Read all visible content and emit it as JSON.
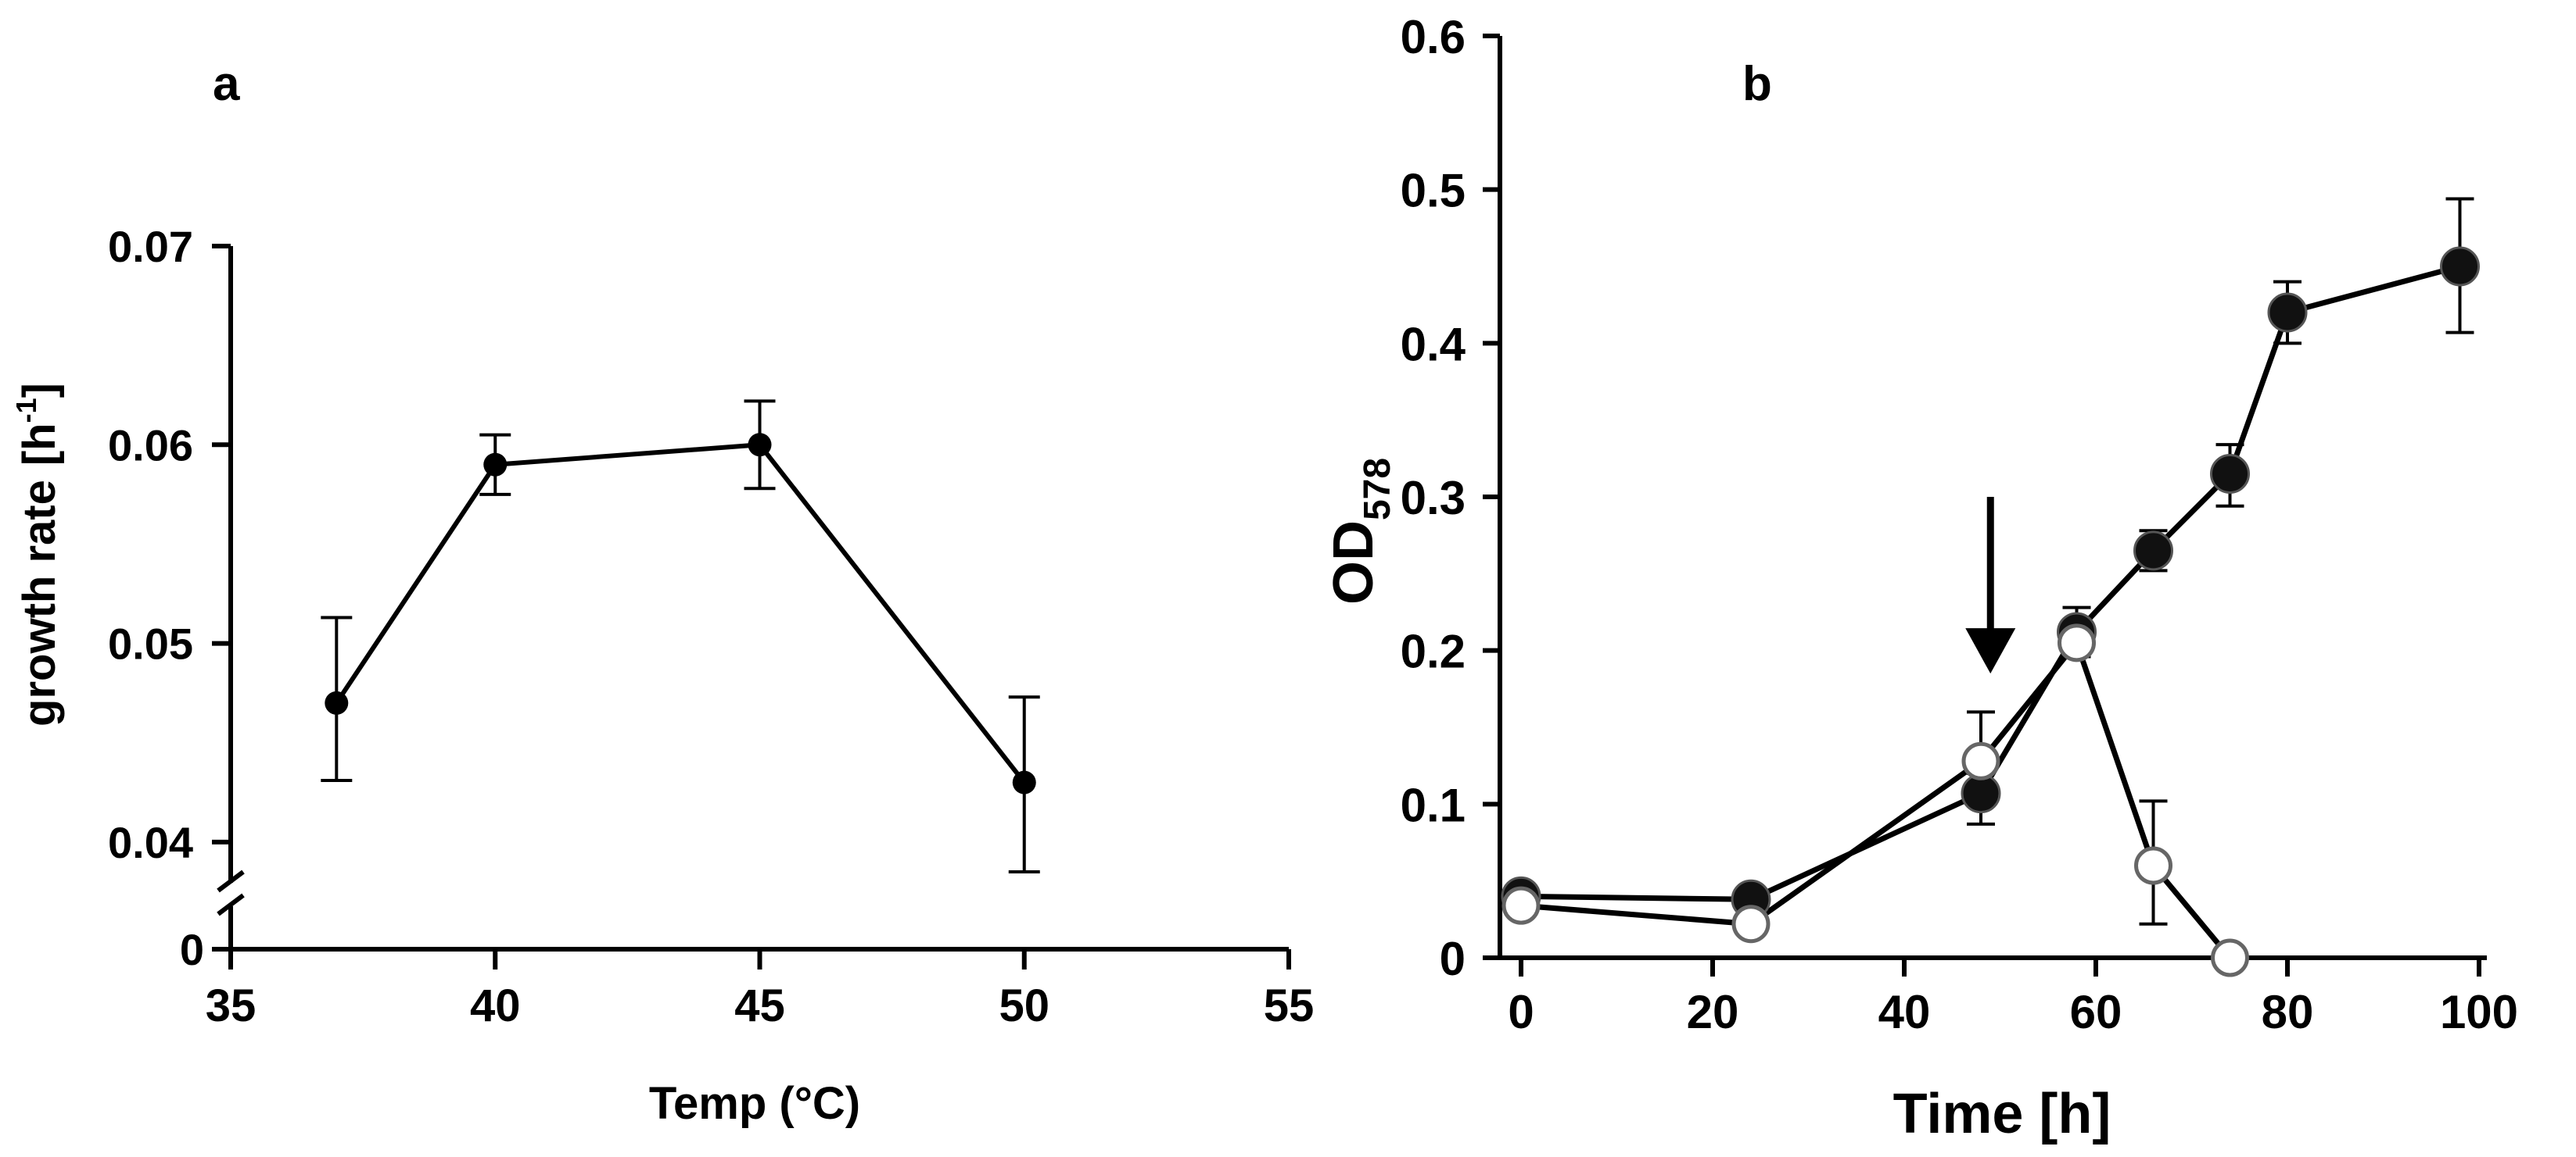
{
  "chart_data": [
    {
      "panel": "a",
      "type": "line",
      "xlabel": "Temp (°C)",
      "ylabel": "growth rate",
      "ylabel_unit_base": "[h",
      "ylabel_unit_sup": "-1",
      "ylabel_unit_close": "]",
      "xlim": [
        35,
        55
      ],
      "ylim_upper": [
        0.035,
        0.07
      ],
      "y_axis_break": true,
      "x_ticks": [
        35,
        40,
        45,
        50,
        55
      ],
      "x_tick_labels": [
        "35",
        "40",
        "45",
        "50",
        "55"
      ],
      "y_ticks": [
        0.04,
        0.05,
        0.06,
        0.07
      ],
      "y_tick_labels": [
        "0.04",
        "0.05",
        "0.06",
        "0.07"
      ],
      "y_zero_label": "0",
      "series": [
        {
          "name": "growth rate",
          "marker": "filled",
          "x": [
            37,
            40,
            45,
            50
          ],
          "y": [
            0.047,
            0.059,
            0.06,
            0.043
          ],
          "err_upper": [
            0.0513,
            0.0605,
            0.0622,
            0.0473
          ],
          "err_lower": [
            0.0431,
            0.0575,
            0.0578,
            0.0385
          ]
        }
      ]
    },
    {
      "panel": "b",
      "type": "line",
      "xlabel": "Time [h]",
      "ylabel_base": "OD",
      "ylabel_sub": "578",
      "xlim": [
        0,
        100
      ],
      "ylim": [
        0,
        0.6
      ],
      "x_ticks": [
        0,
        20,
        40,
        60,
        80,
        100
      ],
      "x_tick_labels": [
        "0",
        "20",
        "40",
        "60",
        "80",
        "100"
      ],
      "y_ticks": [
        0,
        0.1,
        0.2,
        0.3,
        0.4,
        0.5,
        0.6
      ],
      "y_tick_labels": [
        "0",
        "0.1",
        "0.2",
        "0.3",
        "0.4",
        "0.5",
        "0.6"
      ],
      "annotation": {
        "type": "arrow",
        "x": 49,
        "y_from": 0.3,
        "y_to": 0.185
      },
      "series": [
        {
          "name": "filled circles",
          "marker": "filled",
          "x": [
            0,
            24,
            48,
            58,
            66,
            74,
            80,
            98
          ],
          "y": [
            0.04,
            0.038,
            0.107,
            0.212,
            0.265,
            0.315,
            0.42,
            0.45
          ],
          "err_upper": [
            null,
            null,
            0.12,
            0.228,
            0.278,
            0.334,
            0.44,
            0.494
          ],
          "err_lower": [
            null,
            null,
            0.087,
            0.196,
            0.252,
            0.294,
            0.4,
            0.407
          ]
        },
        {
          "name": "open circles",
          "marker": "open",
          "x": [
            0,
            24,
            48,
            58,
            66,
            74
          ],
          "y": [
            0.034,
            0.022,
            0.128,
            0.205,
            0.06,
            0.0
          ],
          "err_upper": [
            null,
            null,
            0.16,
            null,
            0.102,
            null
          ],
          "err_lower": [
            null,
            null,
            null,
            null,
            0.022,
            null
          ]
        }
      ]
    }
  ]
}
